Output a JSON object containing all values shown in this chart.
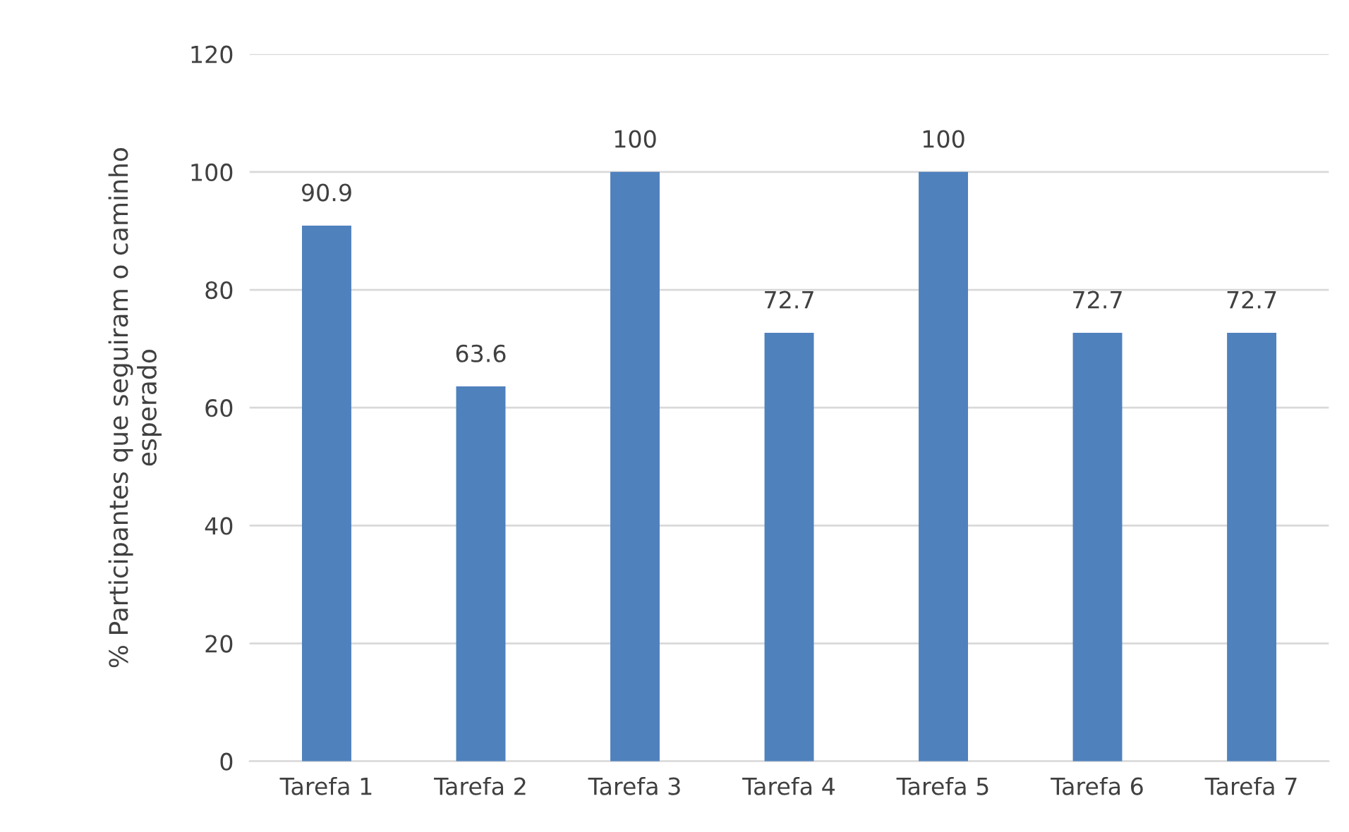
{
  "chart_data": {
    "type": "bar",
    "ylabel": "% Participantes que seguiram o caminho\nesperado",
    "categories": [
      "Tarefa 1",
      "Tarefa 2",
      "Tarefa 3",
      "Tarefa 4",
      "Tarefa 5",
      "Tarefa 6",
      "Tarefa 7"
    ],
    "values": [
      90.9,
      63.6,
      100,
      72.7,
      100,
      72.7,
      72.7
    ],
    "color": "#4f81bd",
    "ylim": [
      0,
      120
    ],
    "yticks": [
      0,
      20,
      40,
      60,
      80,
      100,
      120
    ],
    "grid": "y",
    "data_labels": true
  }
}
